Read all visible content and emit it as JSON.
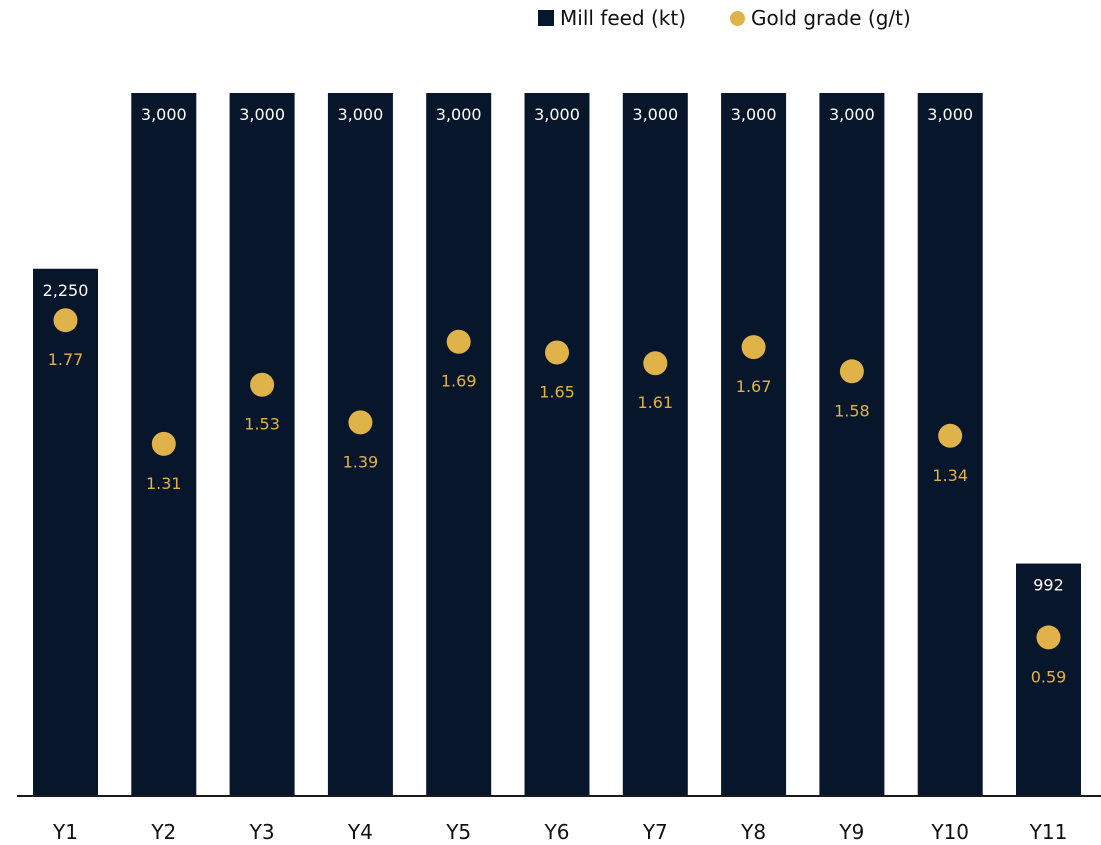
{
  "colors": {
    "bar": "#07162a",
    "grade": "#e0b24a",
    "axis": "#1a1a1a",
    "text": "#111111"
  },
  "legend": {
    "items": [
      {
        "label": "Mill feed (kt)",
        "shape": "square",
        "color": "#07162a"
      },
      {
        "label": "Gold grade (g/t)",
        "shape": "circle",
        "color": "#e0b24a"
      }
    ]
  },
  "chart_data": {
    "type": "bar",
    "categories": [
      "Y1",
      "Y2",
      "Y3",
      "Y4",
      "Y5",
      "Y6",
      "Y7",
      "Y8",
      "Y9",
      "Y10",
      "Y11"
    ],
    "series": [
      {
        "name": "Mill feed (kt)",
        "type": "bar",
        "values": [
          2250,
          3000,
          3000,
          3000,
          3000,
          3000,
          3000,
          3000,
          3000,
          3000,
          992
        ],
        "labels": [
          "2,250",
          "3,000",
          "3,000",
          "3,000",
          "3,000",
          "3,000",
          "3,000",
          "3,000",
          "3,000",
          "3,000",
          "992"
        ]
      },
      {
        "name": "Gold grade (g/t)",
        "type": "scatter",
        "values": [
          1.77,
          1.31,
          1.53,
          1.39,
          1.69,
          1.65,
          1.61,
          1.67,
          1.58,
          1.34,
          0.59
        ],
        "labels": [
          "1.77",
          "1.31",
          "1.53",
          "1.39",
          "1.69",
          "1.65",
          "1.61",
          "1.67",
          "1.58",
          "1.34",
          "0.59"
        ]
      }
    ],
    "title": "",
    "xlabel": "",
    "ylabel": "",
    "ylim_feed": [
      0,
      3000
    ],
    "ylim_grade": [
      0,
      2.5
    ],
    "grid": false,
    "legend_position": "top-right"
  }
}
